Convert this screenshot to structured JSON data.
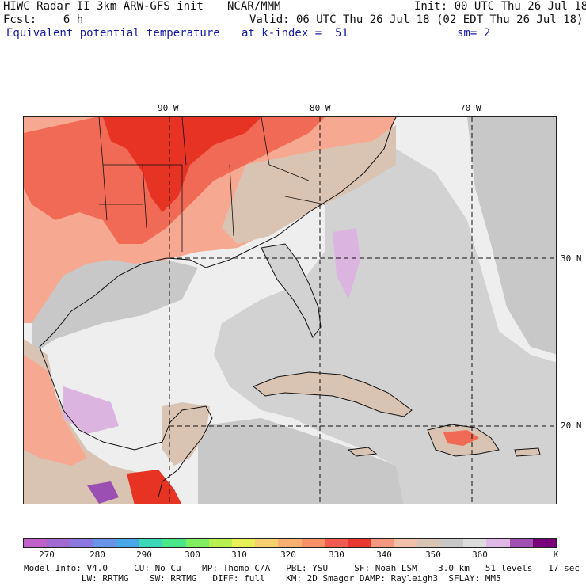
{
  "header": {
    "title": "HIWC Radar II 3km ARW-GFS init",
    "org": "NCAR/MMM",
    "init": "Init: 00 UTC Thu 26 Jul 18",
    "fcst": "Fcst:    6 h",
    "valid": "Valid: 06 UTC Thu 26 Jul 18 (02 EDT Thu 26 Jul 18)",
    "field": "Equivalent potential temperature",
    "level": "at k-index =  51",
    "smooth": "sm= 2"
  },
  "map": {
    "lon_labels": [
      "90 W",
      "80 W",
      "70 W"
    ],
    "lat_labels": [
      "30 N",
      "20 N"
    ],
    "colors": {
      "ocean_light": "#eeeeee",
      "ocean_mid": "#d2d2d2",
      "land_warm": "#f6a891",
      "land_hot": "#f06a55",
      "land_red": "#e63324",
      "tan": "#d9c3b2",
      "lavender": "#dcb4e0",
      "purple": "#9b4fb3",
      "coast": "#111111"
    }
  },
  "colorbar": {
    "colors": [
      "#c060c8",
      "#a06ad0",
      "#8a78e0",
      "#6a94ea",
      "#4aa8e8",
      "#38d8b8",
      "#48e888",
      "#80f060",
      "#b8f050",
      "#e8f058",
      "#f8d070",
      "#f8b070",
      "#f89068",
      "#f05a50",
      "#e83830",
      "#f49880",
      "#f0c0a8",
      "#d9c3b2",
      "#c8c8c8",
      "#dcdcdc",
      "#e0b8e8",
      "#a050b0",
      "#780078"
    ],
    "labels": [
      "270",
      "280",
      "290",
      "300",
      "310",
      "320",
      "330",
      "340",
      "350",
      "360",
      "K"
    ]
  },
  "footer": {
    "line1": "Model Info: V4.0     CU: No Cu    MP: Thomp C/A   PBL: YSU     SF: Noah LSM    3.0 km   51 levels   17 sec",
    "line2": "           LW: RRTMG    SW: RRTMG   DIFF: full    KM: 2D Smagor DAMP: Rayleigh3  SFLAY: MM5"
  }
}
